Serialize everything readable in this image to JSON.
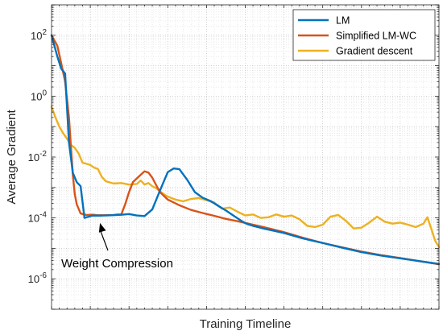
{
  "chart_data": {
    "type": "line",
    "title": "",
    "xlabel": "Training Timeline",
    "ylabel": "Average Gradient",
    "y_scale": "log",
    "ylim": [
      1e-07,
      1000
    ],
    "xlim": [
      0,
      100
    ],
    "grid": true,
    "legend_position": "top-right",
    "y_ticks": [
      {
        "value": 1e-06,
        "base": "10",
        "exp": "-6"
      },
      {
        "value": 0.0001,
        "base": "10",
        "exp": "-4"
      },
      {
        "value": 0.01,
        "base": "10",
        "exp": "-2"
      },
      {
        "value": 1,
        "base": "10",
        "exp": "0"
      },
      {
        "value": 100,
        "base": "10",
        "exp": "2"
      }
    ],
    "series": [
      {
        "name": "LM",
        "color": "#0072BD",
        "x": [
          0,
          1.5,
          2.5,
          3.5,
          4.5,
          5.5,
          6.5,
          7.5,
          8.5,
          10.5,
          12.5,
          14,
          16,
          18,
          20,
          22,
          24,
          26,
          28,
          30,
          31.5,
          33,
          35,
          37,
          39,
          41,
          43,
          45,
          47,
          49,
          50.5,
          52,
          55,
          60,
          65,
          70,
          75,
          80,
          85,
          90,
          95,
          100
        ],
        "y": [
          100,
          20,
          8,
          5.5,
          0.03,
          0.003,
          0.0015,
          0.0011,
          0.0001,
          0.000119,
          0.000119,
          0.00012,
          0.000123,
          0.000127,
          0.000134,
          0.00012,
          0.000115,
          0.00019,
          0.0008,
          0.0032,
          0.0042,
          0.004,
          0.0018,
          0.0007,
          0.00046,
          0.00036,
          0.00025,
          0.000175,
          0.000118,
          8e-05,
          6.3e-05,
          5.5e-05,
          4.4e-05,
          3.2e-05,
          2.1e-05,
          1.5e-05,
          1.05e-05,
          7.5e-06,
          5.8e-06,
          4.7e-06,
          3.8e-06,
          3.1e-06
        ]
      },
      {
        "name": "Simplified LM-WC",
        "color": "#D95319",
        "x": [
          0,
          1.5,
          2.5,
          3.5,
          4.5,
          5.5,
          6,
          6.5,
          7.5,
          9,
          10.5,
          12,
          14,
          16,
          17,
          18,
          19,
          20,
          21,
          23,
          24,
          25,
          26,
          27,
          28,
          30,
          33,
          36,
          39,
          42,
          45,
          48,
          51,
          55,
          60,
          65,
          70,
          75,
          80,
          85,
          90,
          95,
          100
        ],
        "y": [
          100,
          45,
          12,
          3,
          0.2,
          0.0025,
          0.0006,
          0.00028,
          0.00014,
          0.000125,
          0.000128,
          0.000122,
          0.000123,
          0.000125,
          0.00013,
          0.00013,
          0.00028,
          0.0007,
          0.0015,
          0.0026,
          0.0034,
          0.0031,
          0.0021,
          0.0012,
          0.0007,
          0.0004,
          0.00026,
          0.000183,
          0.000145,
          0.000117,
          9.3e-05,
          7.8e-05,
          6.4e-05,
          4.9e-05,
          3.4e-05,
          2.2e-05,
          1.5e-05,
          1.08e-05,
          7.8e-06,
          6e-06,
          4.8e-06,
          3.8e-06,
          3e-06
        ]
      },
      {
        "name": "Gradient descent",
        "color": "#EDB120",
        "x": [
          0,
          1,
          2,
          3,
          4,
          5,
          6,
          7,
          8,
          9,
          10,
          11,
          12,
          13,
          14,
          16,
          18,
          20,
          22,
          23,
          24,
          25,
          26,
          27,
          28,
          29,
          30,
          32,
          34,
          36,
          38,
          40,
          42,
          44,
          46,
          48,
          50,
          52,
          54,
          56,
          58,
          60,
          62,
          64,
          66,
          68,
          70,
          72,
          74,
          76,
          78,
          80,
          82,
          84,
          86,
          88,
          90,
          92,
          94,
          96,
          97,
          98,
          99,
          100
        ],
        "y": [
          0.45,
          0.2,
          0.1,
          0.06,
          0.04,
          0.025,
          0.02,
          0.013,
          0.0065,
          0.006,
          0.0055,
          0.0045,
          0.004,
          0.0022,
          0.0016,
          0.00135,
          0.0014,
          0.00125,
          0.0013,
          0.0017,
          0.00125,
          0.0014,
          0.0011,
          0.00095,
          0.00075,
          0.0006,
          0.0005,
          0.0004,
          0.00035,
          0.00042,
          0.00045,
          0.00038,
          0.00032,
          0.0002,
          0.00022,
          0.00016,
          0.00012,
          0.00013,
          0.0001,
          0.000105,
          0.00013,
          0.00011,
          0.00012,
          9e-05,
          5.5e-05,
          5e-05,
          6e-05,
          0.00011,
          0.000125,
          8e-05,
          4.5e-05,
          4.8e-05,
          7e-05,
          0.00011,
          7.5e-05,
          6.5e-05,
          7e-05,
          6e-05,
          5e-05,
          6.5e-05,
          0.000105,
          4.5e-05,
          1.8e-05,
          1.1e-05
        ]
      }
    ],
    "annotation": {
      "text": "Weight Compression",
      "x": 12.5,
      "y": 0.000125
    }
  }
}
